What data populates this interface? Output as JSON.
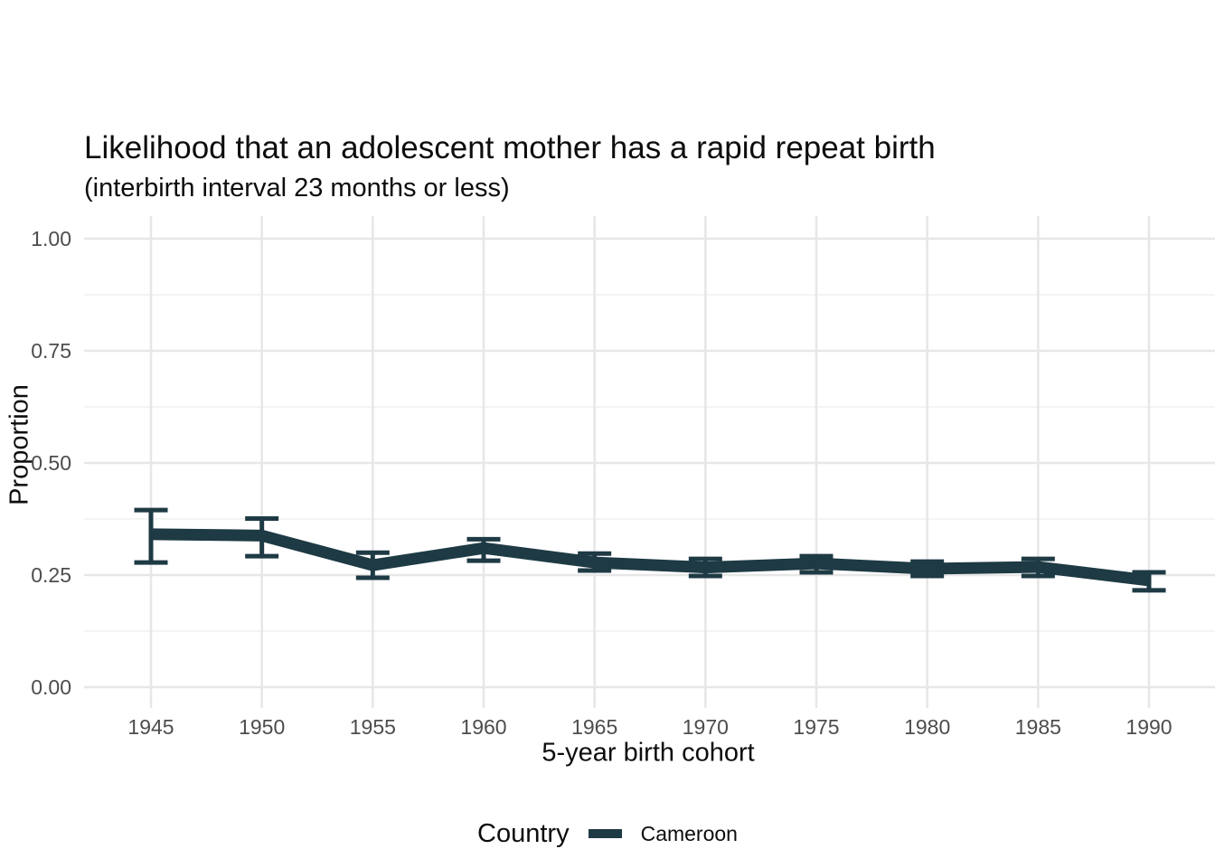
{
  "chart_data": {
    "type": "line",
    "title": "Likelihood that an adolescent mother has a rapid repeat birth",
    "subtitle": "(interbirth interval 23 months or less)",
    "xlabel": "5-year birth cohort",
    "ylabel": "Proportion",
    "legend_title": "Country",
    "legend_position": "bottom",
    "categories": [
      "1945",
      "1950",
      "1955",
      "1960",
      "1965",
      "1970",
      "1975",
      "1980",
      "1985",
      "1990"
    ],
    "ylim": [
      0,
      1
    ],
    "y_major_values": [
      0,
      0.25,
      0.5,
      0.75,
      1.0
    ],
    "y_tick_labels": [
      "0.00",
      "0.25",
      "0.50",
      "0.75",
      "1.00"
    ],
    "y_minor_values": [
      0.125,
      0.375,
      0.625,
      0.875
    ],
    "grid": "horizontal major+minor, vertical major only",
    "series": [
      {
        "name": "Cameroon",
        "color": "#1e3a44",
        "values": [
          0.341,
          0.338,
          0.272,
          0.31,
          0.278,
          0.267,
          0.276,
          0.264,
          0.268,
          0.238
        ],
        "ci_low": [
          0.278,
          0.292,
          0.244,
          0.282,
          0.26,
          0.248,
          0.256,
          0.248,
          0.248,
          0.216
        ],
        "ci_high": [
          0.395,
          0.376,
          0.3,
          0.33,
          0.298,
          0.286,
          0.292,
          0.28,
          0.286,
          0.256
        ]
      }
    ],
    "colors": {
      "series": "#1e3a44",
      "grid_major": "#e7e7e7",
      "grid_minor": "#f0f0f0",
      "tick_label": "#4d4d4d",
      "text": "#0d0d0d",
      "background": "#ffffff"
    }
  }
}
